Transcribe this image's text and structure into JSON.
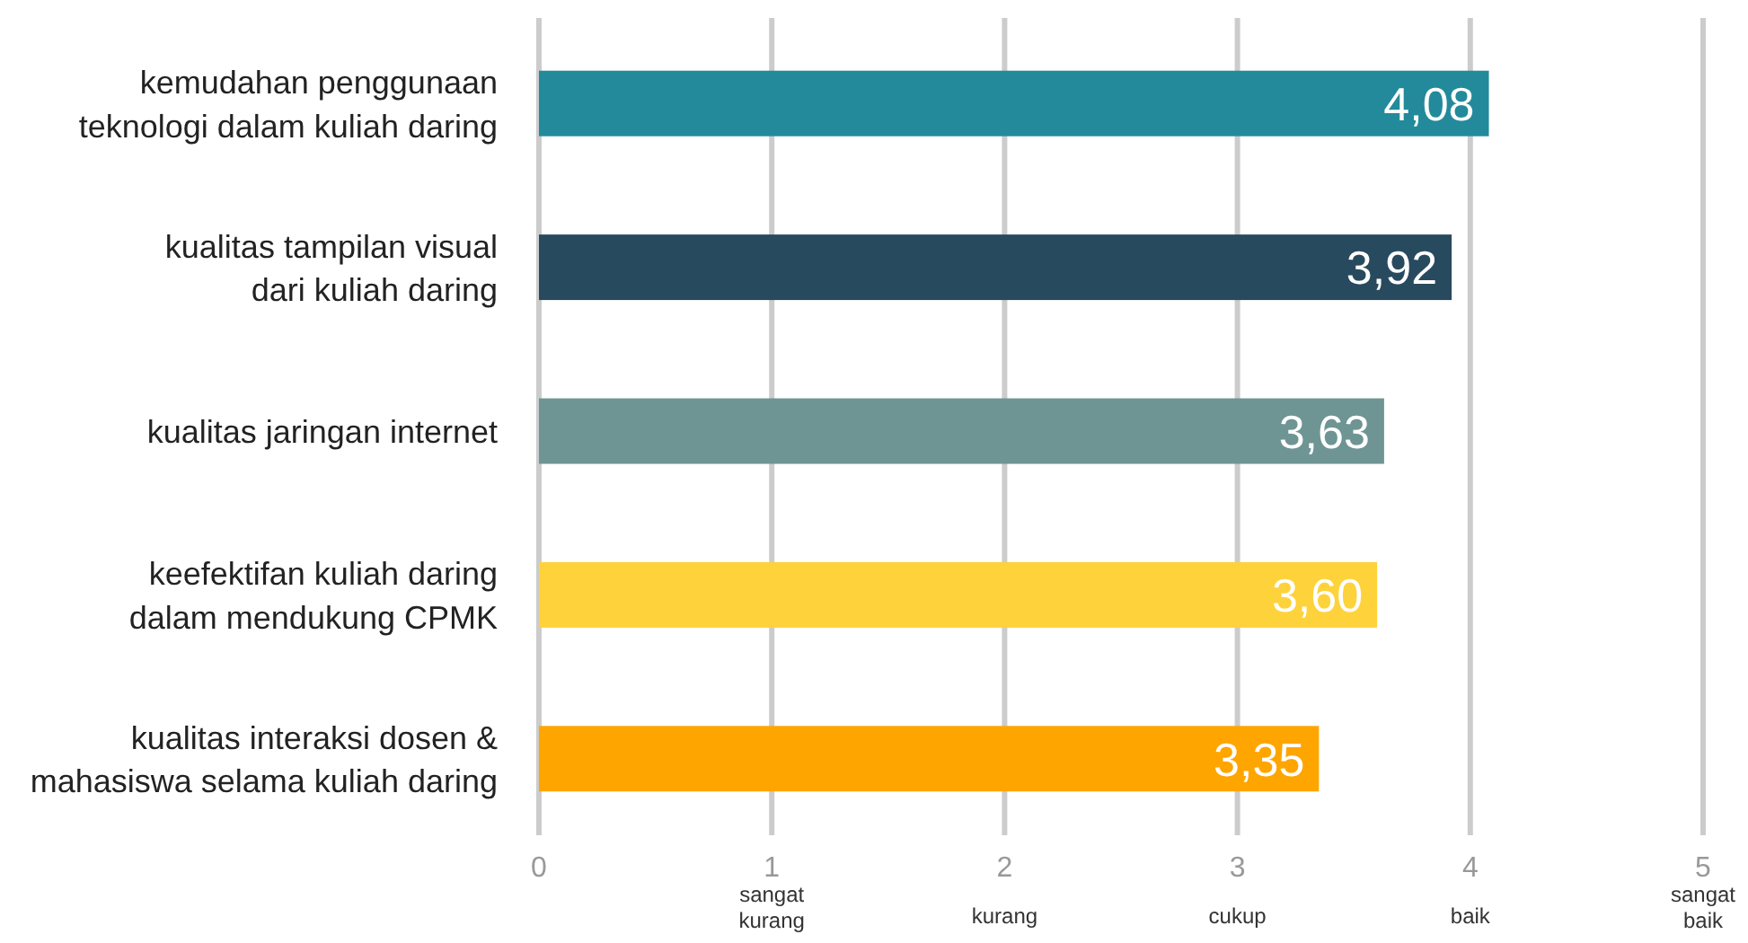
{
  "chart_data": {
    "type": "bar",
    "orientation": "horizontal",
    "categories": [
      "kemudahan penggunaan\nteknologi dalam kuliah daring",
      "kualitas tampilan visual\ndari kuliah daring",
      "kualitas jaringan internet",
      "keefektifan kuliah daring\ndalam mendukung CPMK",
      "kualitas interaksi dosen &\nmahasiswa selama kuliah daring"
    ],
    "values": [
      4.08,
      3.92,
      3.63,
      3.6,
      3.35
    ],
    "colors": [
      "#238a9b",
      "#284a5e",
      "#6e9593",
      "#fed23a",
      "#fea500"
    ],
    "value_labels": [
      "4,08",
      "3,92",
      "3,63",
      "3,60",
      "3,35"
    ],
    "xlim": [
      0,
      5
    ],
    "xticks": [
      0,
      1,
      2,
      3,
      4,
      5
    ],
    "grid": "x",
    "annotations": [
      "sangat\nkurang",
      "kurang",
      "cukup",
      "baik",
      "sangat\nbaik"
    ]
  }
}
